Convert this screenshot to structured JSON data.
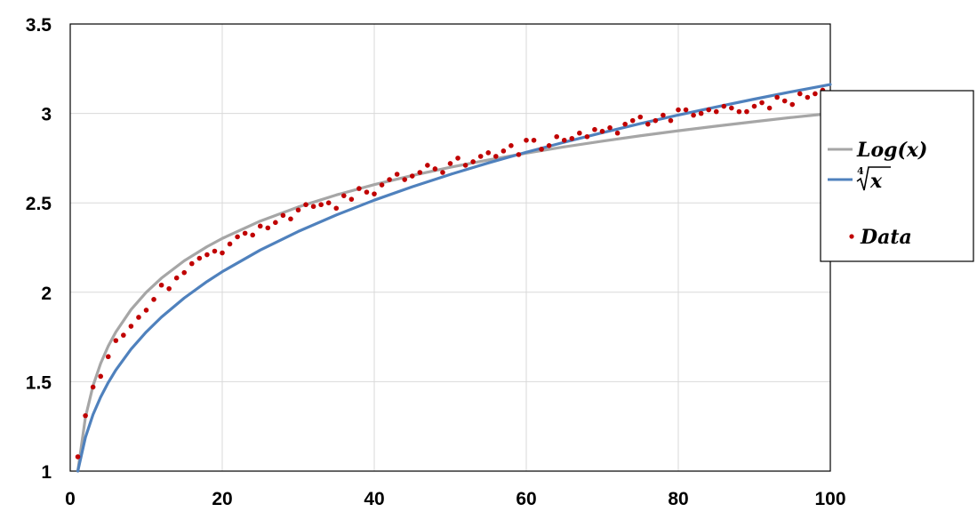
{
  "chart_data": {
    "type": "scatter",
    "xlim": [
      0,
      100
    ],
    "ylim": [
      1,
      3.5
    ],
    "x_ticks": [
      "0",
      "20",
      "40",
      "60",
      "80",
      "100"
    ],
    "y_ticks": [
      "1",
      "1.5",
      "2",
      "2.5",
      "3",
      "3.5"
    ],
    "grid": true,
    "legend_position": "right",
    "series": [
      {
        "name": "Log(x)",
        "kind": "line",
        "color": "#a6a6a6",
        "x": [
          1,
          2,
          3,
          4,
          5,
          6,
          8,
          10,
          12,
          15,
          18,
          20,
          25,
          30,
          35,
          40,
          45,
          50,
          55,
          60,
          65,
          70,
          75,
          80,
          85,
          90,
          95,
          100
        ],
        "y": [
          1.0,
          1.301,
          1.477,
          1.602,
          1.699,
          1.778,
          1.903,
          2.0,
          2.079,
          2.176,
          2.255,
          2.301,
          2.398,
          2.477,
          2.544,
          2.602,
          2.653,
          2.699,
          2.74,
          2.778,
          2.813,
          2.845,
          2.875,
          2.903,
          2.929,
          2.954,
          2.978,
          3.0
        ]
      },
      {
        "name": "∜x",
        "kind": "line",
        "color": "#4f81bd",
        "x": [
          1,
          2,
          3,
          4,
          5,
          6,
          8,
          10,
          12,
          15,
          18,
          20,
          25,
          30,
          35,
          40,
          45,
          50,
          55,
          60,
          65,
          70,
          75,
          80,
          85,
          90,
          95,
          100
        ],
        "y": [
          1.0,
          1.189,
          1.316,
          1.414,
          1.495,
          1.565,
          1.682,
          1.778,
          1.861,
          1.968,
          2.06,
          2.115,
          2.236,
          2.34,
          2.432,
          2.515,
          2.59,
          2.659,
          2.723,
          2.783,
          2.839,
          2.892,
          2.943,
          2.991,
          3.036,
          3.08,
          3.122,
          3.162
        ]
      },
      {
        "name": "Data",
        "kind": "points",
        "color": "#c00000",
        "x": [
          1,
          2,
          3,
          4,
          5,
          6,
          7,
          8,
          9,
          10,
          11,
          12,
          13,
          14,
          15,
          16,
          17,
          18,
          19,
          20,
          21,
          22,
          23,
          24,
          25,
          26,
          27,
          28,
          29,
          30,
          31,
          32,
          33,
          34,
          35,
          36,
          37,
          38,
          39,
          40,
          41,
          42,
          43,
          44,
          45,
          46,
          47,
          48,
          49,
          50,
          51,
          52,
          53,
          54,
          55,
          56,
          57,
          58,
          59,
          60,
          61,
          62,
          63,
          64,
          65,
          66,
          67,
          68,
          69,
          70,
          71,
          72,
          73,
          74,
          75,
          76,
          77,
          78,
          79,
          80,
          81,
          82,
          83,
          84,
          85,
          86,
          87,
          88,
          89,
          90,
          91,
          92,
          93,
          94,
          95,
          96,
          97,
          98,
          99,
          100
        ],
        "y": [
          1.08,
          1.31,
          1.47,
          1.53,
          1.64,
          1.73,
          1.76,
          1.81,
          1.86,
          1.9,
          1.96,
          2.04,
          2.02,
          2.08,
          2.11,
          2.16,
          2.19,
          2.21,
          2.23,
          2.22,
          2.27,
          2.31,
          2.33,
          2.32,
          2.37,
          2.36,
          2.39,
          2.43,
          2.41,
          2.46,
          2.49,
          2.48,
          2.49,
          2.5,
          2.47,
          2.54,
          2.52,
          2.58,
          2.56,
          2.55,
          2.6,
          2.63,
          2.66,
          2.63,
          2.65,
          2.67,
          2.71,
          2.69,
          2.67,
          2.72,
          2.75,
          2.71,
          2.73,
          2.76,
          2.78,
          2.76,
          2.79,
          2.82,
          2.77,
          2.85,
          2.85,
          2.8,
          2.82,
          2.87,
          2.85,
          2.86,
          2.89,
          2.87,
          2.91,
          2.9,
          2.92,
          2.89,
          2.94,
          2.96,
          2.98,
          2.94,
          2.96,
          2.99,
          2.96,
          3.02,
          3.02,
          2.99,
          3.0,
          3.02,
          3.01,
          3.04,
          3.03,
          3.01,
          3.01,
          3.04,
          3.06,
          3.03,
          3.09,
          3.07,
          3.05,
          3.11,
          3.09,
          3.11,
          3.13,
          3.1
        ]
      }
    ]
  }
}
